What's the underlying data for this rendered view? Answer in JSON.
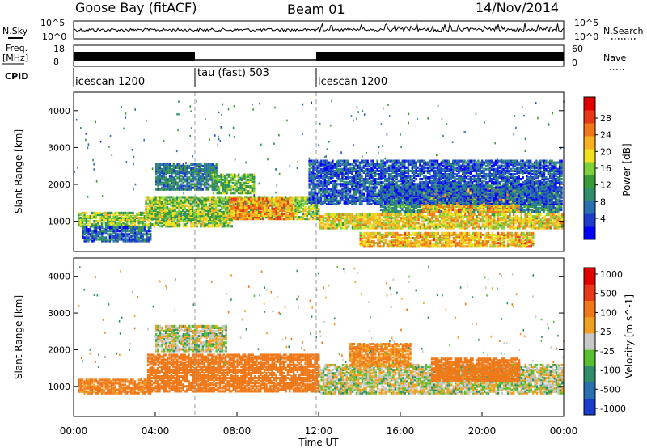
{
  "header": {
    "station": "Goose Bay (fitACF)",
    "beam": "Beam 01",
    "date": "14/Nov/2014"
  },
  "panels": {
    "noise": {
      "left_label": "N.Sky",
      "right_label": "N.Search",
      "left_ticks": [
        "10^5",
        "10^0"
      ],
      "right_ticks": [
        "10^5",
        "10^0"
      ]
    },
    "freq": {
      "left_label_top": "Freq.",
      "left_label_bottom": "[MHz]",
      "right_label": "Nave",
      "left_ticks": [
        "18",
        "8"
      ],
      "right_ticks": [
        "60",
        "0"
      ]
    },
    "cpid": {
      "label": "CPID",
      "segments": [
        "icescan 1200",
        "tau (fast) 503",
        "icescan 1200"
      ]
    }
  },
  "chart_data": [
    {
      "type": "heatmap",
      "name": "power",
      "ylabel": "Slant Range [km]",
      "ylim": [
        180,
        4500
      ],
      "yticks": [
        1000,
        2000,
        3000,
        4000
      ],
      "x_range_hours": [
        0,
        24
      ],
      "colorbar": {
        "label": "Power [dB]",
        "ticks": [
          "28",
          "24",
          "20",
          "16",
          "12",
          "8",
          "4"
        ],
        "colors": [
          "#0000ff",
          "#1e3ccc",
          "#2a6fb0",
          "#2f8f6a",
          "#3a9a3a",
          "#7fcf3a",
          "#f0e020",
          "#f8b020",
          "#f07818",
          "#e83818",
          "#e00000"
        ]
      },
      "regions": [
        {
          "h0": 0.2,
          "h1": 7.8,
          "r0": 900,
          "r1": 1300,
          "level": 16
        },
        {
          "h0": 0.4,
          "h1": 3.8,
          "r0": 500,
          "r1": 900,
          "level": 6
        },
        {
          "h0": 3.5,
          "h1": 12.0,
          "r0": 1100,
          "r1": 1700,
          "level": 16
        },
        {
          "h0": 7.6,
          "h1": 10.8,
          "r0": 1100,
          "r1": 1650,
          "level": 24
        },
        {
          "h0": 4.0,
          "h1": 7.0,
          "r0": 1900,
          "r1": 2600,
          "level": 8
        },
        {
          "h0": 6.8,
          "h1": 8.8,
          "r0": 1800,
          "r1": 2300,
          "level": 14
        },
        {
          "h0": 12.0,
          "h1": 23.9,
          "r0": 850,
          "r1": 1250,
          "level": 20
        },
        {
          "h0": 14.0,
          "h1": 22.5,
          "r0": 350,
          "r1": 750,
          "level": 22
        },
        {
          "h0": 15.0,
          "h1": 23.9,
          "r0": 1300,
          "r1": 2000,
          "level": 10
        },
        {
          "h0": 17.0,
          "h1": 21.8,
          "r0": 1300,
          "r1": 1900,
          "level": 22
        },
        {
          "h0": 11.5,
          "h1": 23.9,
          "r0": 1500,
          "r1": 2700,
          "level": 5
        }
      ]
    },
    {
      "type": "heatmap",
      "name": "velocity",
      "ylabel": "Slant Range [km]",
      "xlabel": "Time UT",
      "ylim": [
        180,
        4500
      ],
      "yticks": [
        1000,
        2000,
        3000,
        4000
      ],
      "xticks": [
        "00:00",
        "04:00",
        "08:00",
        "12:00",
        "16:00",
        "20:00",
        "00:00"
      ],
      "x_range_hours": [
        0,
        24
      ],
      "colorbar": {
        "label": "Velocity [m s^-1]",
        "ticks": [
          "1000",
          "500",
          "100",
          "25",
          "-25",
          "-100",
          "-500",
          "-1000"
        ],
        "colors": [
          "#1a3ccc",
          "#2a6fb0",
          "#2f8f6a",
          "#58c030",
          "#c8c8c8",
          "#f0a020",
          "#f07818",
          "#e83818",
          "#e00000"
        ]
      },
      "regions": [
        {
          "h0": 0.2,
          "h1": 3.8,
          "r0": 850,
          "r1": 1250,
          "level": -150
        },
        {
          "h0": 3.6,
          "h1": 12.0,
          "r0": 900,
          "r1": 1900,
          "level": -200
        },
        {
          "h0": 4.0,
          "h1": 7.5,
          "r0": 2000,
          "r1": 2700,
          "level": 0
        },
        {
          "h0": 12.0,
          "h1": 23.9,
          "r0": 850,
          "r1": 1650,
          "level": 0
        },
        {
          "h0": 17.5,
          "h1": 21.8,
          "r0": 1200,
          "r1": 1800,
          "level": -200
        },
        {
          "h0": 13.5,
          "h1": 16.5,
          "r0": 1600,
          "r1": 2200,
          "level": -120
        }
      ]
    }
  ]
}
